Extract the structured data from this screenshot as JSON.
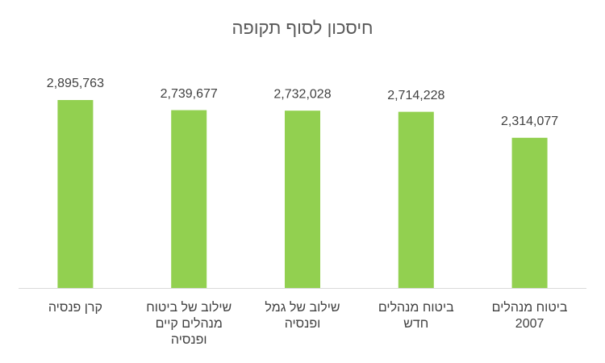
{
  "chart_data": {
    "type": "bar",
    "title": "חיסכון לסוף תקופה",
    "categories": [
      "קרן פנסיה",
      "שילוב של ביטוח מנהלים קיים ופנסיה",
      "שילוב של גמל ופנסיה",
      "ביטוח מנהלים חדש",
      "ביטוח מנהלים 2007"
    ],
    "values": [
      2895763,
      2739677,
      2732028,
      2714228,
      2314077
    ],
    "value_labels": [
      "2,895,763",
      "2,739,677",
      "2,732,028",
      "2,714,228",
      "2,314,077"
    ],
    "color": "#92d050"
  }
}
